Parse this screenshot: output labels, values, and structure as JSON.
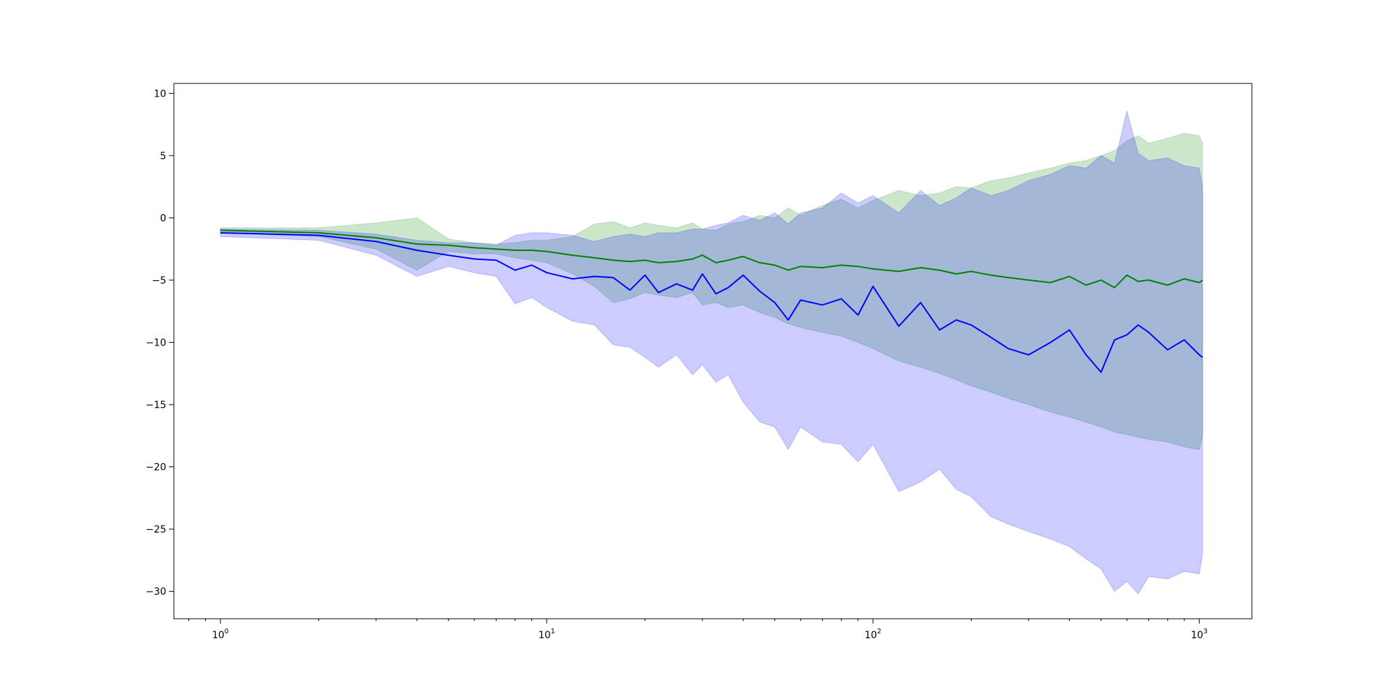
{
  "chart_data": {
    "type": "line",
    "title": "",
    "xlabel": "",
    "ylabel": "",
    "xscale": "log",
    "xlim": [
      0.72,
      1450
    ],
    "ylim": [
      -32.2,
      10.8
    ],
    "grid": false,
    "legend": "none",
    "x_ticks": [
      {
        "value": 1,
        "base": "10",
        "exp": "0"
      },
      {
        "value": 10,
        "base": "10",
        "exp": "1"
      },
      {
        "value": 100,
        "base": "10",
        "exp": "2"
      },
      {
        "value": 1000,
        "base": "10",
        "exp": "3"
      }
    ],
    "y_ticks": [
      {
        "value": 10,
        "label": "10"
      },
      {
        "value": 5,
        "label": "5"
      },
      {
        "value": 0,
        "label": "0"
      },
      {
        "value": -5,
        "label": "−5"
      },
      {
        "value": -10,
        "label": "−10"
      },
      {
        "value": -15,
        "label": "−15"
      },
      {
        "value": -20,
        "label": "−20"
      },
      {
        "value": -25,
        "label": "−25"
      },
      {
        "value": -30,
        "label": "−30"
      }
    ],
    "x": [
      1,
      2,
      3,
      4,
      5,
      6,
      7,
      8,
      9,
      10,
      12,
      14,
      16,
      18,
      20,
      22,
      25,
      28,
      30,
      33,
      36,
      40,
      45,
      50,
      55,
      60,
      70,
      80,
      90,
      100,
      120,
      140,
      160,
      180,
      200,
      230,
      260,
      300,
      350,
      400,
      450,
      500,
      550,
      600,
      650,
      700,
      800,
      900,
      1000,
      1024
    ],
    "series": [
      {
        "color": "#008000",
        "band_color": "#008000",
        "mean": [
          -1.0,
          -1.2,
          -1.6,
          -2.1,
          -2.2,
          -2.4,
          -2.5,
          -2.6,
          -2.6,
          -2.7,
          -3.0,
          -3.2,
          -3.4,
          -3.5,
          -3.4,
          -3.6,
          -3.5,
          -3.3,
          -3.0,
          -3.6,
          -3.4,
          -3.1,
          -3.6,
          -3.8,
          -4.2,
          -3.9,
          -4.0,
          -3.8,
          -3.9,
          -4.1,
          -4.3,
          -4.0,
          -4.2,
          -4.5,
          -4.3,
          -4.6,
          -4.8,
          -5.0,
          -5.2,
          -4.7,
          -5.4,
          -5.0,
          -5.6,
          -4.6,
          -5.1,
          -5.0,
          -5.4,
          -4.9,
          -5.2,
          -5.0
        ],
        "upper": [
          -0.8,
          -0.8,
          -0.4,
          0.0,
          -1.7,
          -2.0,
          -2.1,
          -2.0,
          -1.8,
          -1.8,
          -1.5,
          -0.5,
          -0.3,
          -0.8,
          -0.4,
          -0.6,
          -0.8,
          -0.4,
          -0.9,
          -1.0,
          -0.5,
          -0.3,
          0.2,
          0.0,
          0.8,
          0.2,
          1.0,
          1.5,
          0.8,
          1.4,
          2.2,
          1.8,
          2.0,
          2.5,
          2.4,
          3.0,
          3.2,
          3.6,
          4.0,
          4.4,
          4.6,
          5.0,
          5.4,
          6.2,
          6.6,
          6.0,
          6.4,
          6.8,
          6.6,
          6.0
        ],
        "lower": [
          -1.2,
          -1.5,
          -2.5,
          -4.2,
          -2.7,
          -2.9,
          -2.9,
          -3.2,
          -3.4,
          -3.6,
          -4.5,
          -5.5,
          -6.8,
          -6.5,
          -6.0,
          -6.2,
          -6.4,
          -6.0,
          -7.0,
          -6.8,
          -7.2,
          -7.0,
          -7.6,
          -8.0,
          -8.5,
          -8.8,
          -9.2,
          -9.5,
          -10.0,
          -10.5,
          -11.5,
          -12.0,
          -12.5,
          -13.0,
          -13.5,
          -14.0,
          -14.5,
          -15.0,
          -15.6,
          -16.0,
          -16.4,
          -16.8,
          -17.2,
          -17.4,
          -17.6,
          -17.8,
          -18.0,
          -18.4,
          -18.6,
          -17.5
        ]
      },
      {
        "color": "#0000ff",
        "band_color": "#0000ff",
        "mean": [
          -1.2,
          -1.4,
          -1.9,
          -2.6,
          -3.0,
          -3.3,
          -3.4,
          -4.2,
          -3.8,
          -4.4,
          -4.9,
          -4.7,
          -4.8,
          -5.8,
          -4.6,
          -6.0,
          -5.3,
          -5.8,
          -4.5,
          -6.1,
          -5.6,
          -4.6,
          -5.9,
          -6.8,
          -8.2,
          -6.6,
          -7.0,
          -6.5,
          -7.8,
          -5.5,
          -8.7,
          -6.8,
          -9.0,
          -8.2,
          -8.6,
          -9.6,
          -10.5,
          -11.0,
          -10.0,
          -9.0,
          -11.0,
          -12.4,
          -9.8,
          -9.4,
          -8.6,
          -9.2,
          -10.6,
          -9.8,
          -11.0,
          -11.2
        ],
        "upper": [
          -0.9,
          -1.0,
          -1.3,
          -1.8,
          -2.0,
          -2.0,
          -2.2,
          -1.4,
          -1.2,
          -1.2,
          -1.4,
          -1.9,
          -1.5,
          -1.3,
          -1.5,
          -1.2,
          -1.2,
          -0.9,
          -0.9,
          -0.6,
          -0.4,
          0.2,
          -0.2,
          0.4,
          -0.5,
          0.4,
          0.8,
          2.0,
          1.2,
          1.8,
          0.4,
          2.2,
          1.0,
          1.6,
          2.4,
          1.8,
          2.2,
          3.0,
          3.5,
          4.2,
          4.0,
          5.0,
          4.4,
          8.6,
          5.2,
          4.6,
          4.8,
          4.2,
          4.0,
          2.5
        ],
        "lower": [
          -1.5,
          -1.8,
          -3.0,
          -4.7,
          -3.9,
          -4.4,
          -4.7,
          -6.9,
          -6.4,
          -7.2,
          -8.3,
          -8.6,
          -10.2,
          -10.4,
          -11.2,
          -12.0,
          -11.0,
          -12.6,
          -11.8,
          -13.2,
          -12.6,
          -14.8,
          -16.4,
          -16.8,
          -18.6,
          -16.8,
          -18.0,
          -18.2,
          -19.6,
          -18.2,
          -22.0,
          -21.2,
          -20.2,
          -21.8,
          -22.4,
          -24.0,
          -24.6,
          -25.2,
          -25.8,
          -26.4,
          -27.4,
          -28.2,
          -30.0,
          -29.2,
          -30.2,
          -28.8,
          -29.0,
          -28.4,
          -28.6,
          -27.0
        ]
      }
    ]
  }
}
